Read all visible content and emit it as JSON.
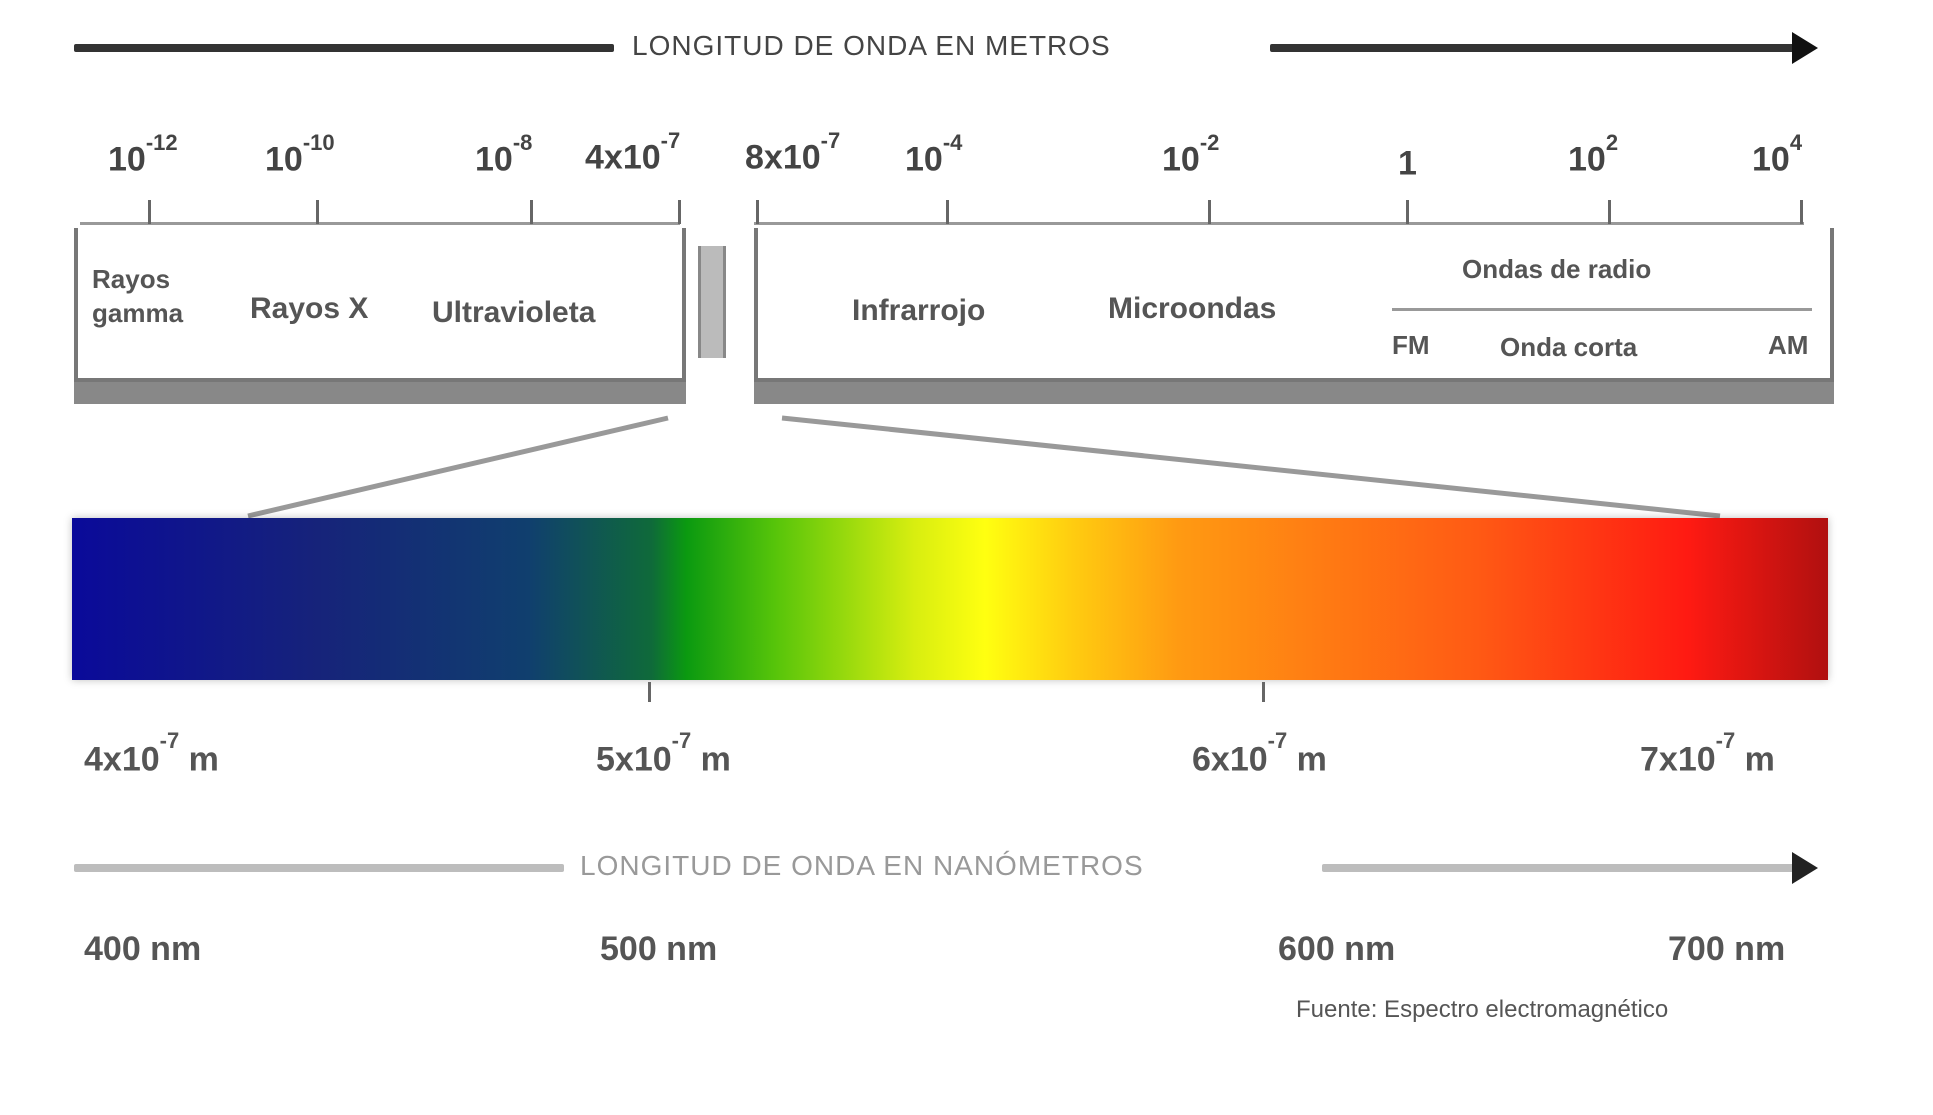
{
  "top_axis": {
    "title": "LONGITUD DE ONDA EN METROS"
  },
  "bottom_axis": {
    "title": "LONGITUD DE ONDA EN NANÓMETROS"
  },
  "scale_ticks": [
    {
      "base": "10",
      "exp": "-12"
    },
    {
      "base": "10",
      "exp": "-10"
    },
    {
      "base": "10",
      "exp": "-8"
    },
    {
      "base": "4x10",
      "exp": "-7"
    },
    {
      "base": "8x10",
      "exp": "-7"
    },
    {
      "base": "10",
      "exp": "-4"
    },
    {
      "base": "10",
      "exp": "-2"
    },
    {
      "base": "1",
      "exp": ""
    },
    {
      "base": "10",
      "exp": "2"
    },
    {
      "base": "10",
      "exp": "4"
    }
  ],
  "left_regions": {
    "gamma": {
      "line1": "Rayos",
      "line2": "gamma"
    },
    "xray": "Rayos X",
    "uv": "Ultravioleta"
  },
  "right_regions": {
    "ir": "Infrarrojo",
    "microwave": "Microondas",
    "radio": {
      "title": "Ondas de radio",
      "left": "FM",
      "mid": "Onda corta",
      "right": "AM"
    }
  },
  "spectrum_labels": [
    {
      "base": "4x10",
      "exp": "-7",
      "unit": "m"
    },
    {
      "base": "5x10",
      "exp": "-7",
      "unit": "m"
    },
    {
      "base": "6x10",
      "exp": "-7",
      "unit": "m"
    },
    {
      "base": "7x10",
      "exp": "-7",
      "unit": "m"
    }
  ],
  "nm_labels": [
    "400 nm",
    "500 nm",
    "600 nm",
    "700 nm"
  ],
  "caption": "Fuente: Espectro electromagnético"
}
